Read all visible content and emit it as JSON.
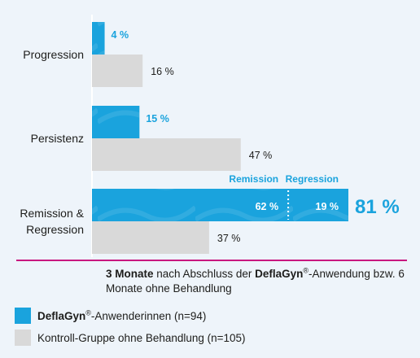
{
  "chart_data": {
    "type": "bar",
    "orientation": "horizontal",
    "categories": [
      "Progression",
      "Persistenz",
      "Remission & Regression"
    ],
    "category_lines": [
      [
        "Progression"
      ],
      [
        "Persistenz"
      ],
      [
        "Remission &",
        "Regression"
      ]
    ],
    "series": [
      {
        "name": "DeflaGyn®-Anwenderinnen (n=94)",
        "color": "#1aa3dd",
        "values": [
          4,
          15,
          81
        ],
        "labels": [
          "4 %",
          "15 %",
          "81 %"
        ],
        "stacked_segments": {
          "category": "Remission & Regression",
          "segments": [
            {
              "name": "Remission",
              "value": 62,
              "label": "62 %"
            },
            {
              "name": "Regression",
              "value": 19,
              "label": "19 %"
            }
          ]
        }
      },
      {
        "name": "Kontroll-Gruppe ohne Behandlung (n=105)",
        "color": "#d9d9d9",
        "values": [
          16,
          47,
          37
        ],
        "labels": [
          "16 %",
          "47 %",
          "37 %"
        ]
      }
    ],
    "xlim": [
      0,
      81
    ],
    "grid": false,
    "legend_placement": "bottom-left"
  },
  "caption": {
    "part1_bold": "3 Monate",
    "part2": " nach Abschluss der ",
    "part3_bold": "DeflaGyn",
    "reg": "®",
    "part4": "-Anwendung bzw. 6 Monate ohne Behandlung"
  },
  "legend": {
    "item1_bold": "DeflaGyn",
    "item1_reg": "®",
    "item1_rest": "-Anwenderinnen (n=94)",
    "item2": "Kontroll-Gruppe ohne Behandlung (n=105)"
  },
  "colors": {
    "accent_blue": "#1aa3dd",
    "control_gray": "#d9d9d9",
    "divider_magenta": "#c8177f",
    "background": "#eef4fa"
  }
}
